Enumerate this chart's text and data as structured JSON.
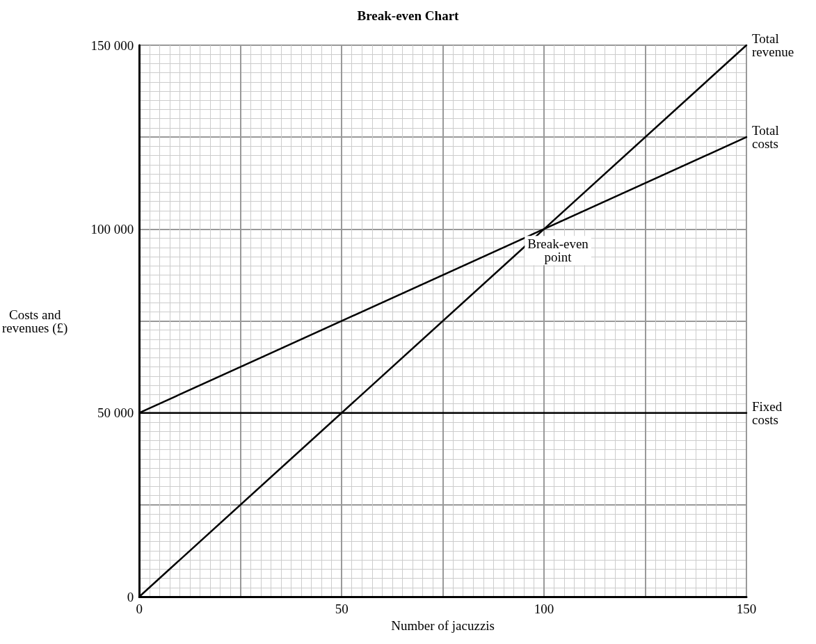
{
  "chart_data": {
    "type": "line",
    "title": "Break-even Chart",
    "xlabel": "Number of jacuzzis",
    "ylabel": "Costs and revenues (£)",
    "x": [
      0,
      150
    ],
    "series": [
      {
        "name": "Total revenue",
        "color": "#000000",
        "values": [
          0,
          150000
        ]
      },
      {
        "name": "Total costs",
        "color": "#000000",
        "values": [
          50000,
          125000
        ]
      },
      {
        "name": "Fixed costs",
        "color": "#000000",
        "values": [
          50000,
          50000
        ]
      }
    ],
    "annotations": [
      {
        "text": "Break-even point",
        "x": 100,
        "y": 100000
      }
    ],
    "xlim": [
      0,
      150
    ],
    "xticks": [
      0,
      {
        "value": 25,
        "label": null
      },
      50,
      {
        "value": 75,
        "label": null
      },
      100,
      {
        "value": 125,
        "label": null
      },
      150
    ],
    "ylim": [
      0,
      150000
    ],
    "yticks": [
      0,
      {
        "value": 25000,
        "label": null
      },
      {
        "value": 50000,
        "label": "50 000"
      },
      {
        "value": 75000,
        "label": null
      },
      {
        "value": 100000,
        "label": "100 000"
      },
      {
        "value": 125000,
        "label": null
      },
      {
        "value": 150000,
        "label": "150 000"
      }
    ],
    "grid": true,
    "marker": "none",
    "line_style": "solid",
    "legend": false
  }
}
